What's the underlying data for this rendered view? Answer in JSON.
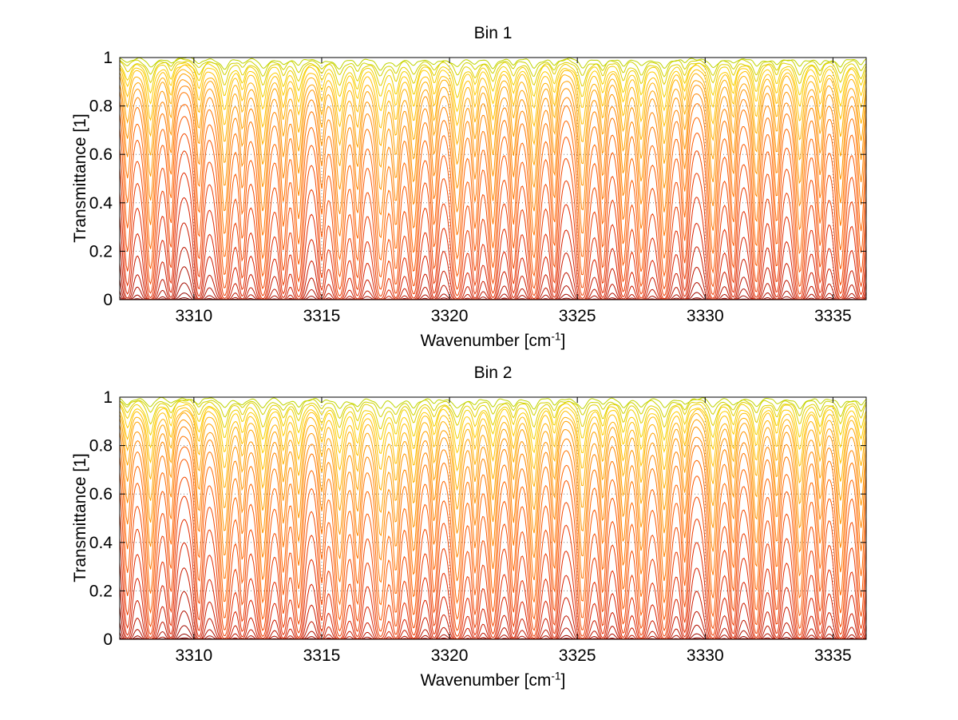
{
  "page": {
    "background": "#ffffff"
  },
  "labels": {
    "ylabel": "Transmittance [1]",
    "xlabel_prefix": "Wavenumber [cm",
    "xlabel_sup": "-1",
    "xlabel_suffix": "]"
  },
  "style": {
    "axis_color": "#000000",
    "grid_color": "#808080",
    "grid_dash": "1 3"
  },
  "chart_data": {
    "type": "line",
    "titles": [
      "Bin 1",
      "Bin 2"
    ],
    "xlabel": "Wavenumber [cm^-1]",
    "ylabel": "Transmittance [1]",
    "xlim": [
      3307.1,
      3336.3
    ],
    "ylim": [
      0,
      1
    ],
    "xticks": [
      3310,
      3315,
      3320,
      3325,
      3330,
      3335
    ],
    "xtick_labels": [
      "3310",
      "3315",
      "3320",
      "3325",
      "3330",
      "3335"
    ],
    "yticks": [
      0,
      0.2,
      0.4,
      0.6,
      0.8,
      1
    ],
    "ytick_labels": [
      "0",
      "0.2",
      "0.4",
      "0.6",
      "0.8",
      "1"
    ],
    "grid": "dotted",
    "legend": "none",
    "series_model": "transmittance_family",
    "description": "Two stacked subplots (Bin 1, Bin 2), each showing a family of molecular transmittance spectra T = exp(-s*A(nu)) for increasing absorption scale factors s; weak absorbers (yellow/orange) hug T=1, strong absorbers (dark red) saturate toward T=0. Lorentzian line positions in cm^-1 with peak absorbances and half-widths below.",
    "baseline_absorbance": 0.04,
    "absorption_lines": {
      "centers": [
        3307.4,
        3308.3,
        3309.1,
        3310.2,
        3311.2,
        3311.9,
        3312.7,
        3313.5,
        3314.1,
        3315.0,
        3315.7,
        3316.4,
        3317.3,
        3317.9,
        3318.6,
        3319.4,
        3320.3,
        3321.0,
        3321.7,
        3322.5,
        3323.3,
        3324.1,
        3325.2,
        3326.0,
        3326.8,
        3327.5,
        3328.4,
        3329.2,
        3330.3,
        3331.1,
        3332.0,
        3332.8,
        3333.7,
        3334.5,
        3335.3,
        3336.1
      ],
      "strengths": [
        0.5,
        0.9,
        0.45,
        0.55,
        1.0,
        0.5,
        1.0,
        0.6,
        0.8,
        0.5,
        1.0,
        0.7,
        1.0,
        0.8,
        0.9,
        0.6,
        1.0,
        0.6,
        0.85,
        0.6,
        1.0,
        0.6,
        1.0,
        0.6,
        0.8,
        0.9,
        1.0,
        0.55,
        0.95,
        0.6,
        0.85,
        0.6,
        0.95,
        0.6,
        0.9,
        0.7
      ],
      "widths": [
        0.15,
        0.16,
        0.13,
        0.14,
        0.17,
        0.13,
        0.16,
        0.13,
        0.15,
        0.13,
        0.17,
        0.14,
        0.18,
        0.14,
        0.15,
        0.13,
        0.17,
        0.13,
        0.15,
        0.13,
        0.16,
        0.13,
        0.17,
        0.13,
        0.14,
        0.15,
        0.16,
        0.13,
        0.16,
        0.13,
        0.15,
        0.13,
        0.16,
        0.13,
        0.15,
        0.14
      ]
    },
    "scale_factors": [
      0.04,
      0.07,
      0.11,
      0.16,
      0.22,
      0.3,
      0.4,
      0.53,
      0.7,
      0.92,
      1.2,
      1.6,
      2.1,
      2.8,
      3.7,
      4.9,
      6.5,
      8.6,
      11.4,
      15,
      20,
      27,
      36,
      48,
      80,
      130,
      210,
      340
    ],
    "noise_amplitude": 0.008,
    "colormap": [
      "#bfd400",
      "#ffcf00",
      "#ff9800",
      "#ff5e00",
      "#df2600",
      "#ad0e00",
      "#790000",
      "#520000"
    ],
    "bins": [
      {
        "title": "Bin 1",
        "strength_multiplier": 1.0,
        "seed": 1.0
      },
      {
        "title": "Bin 2",
        "strength_multiplier": 1.07,
        "seed": 2.0
      }
    ]
  }
}
